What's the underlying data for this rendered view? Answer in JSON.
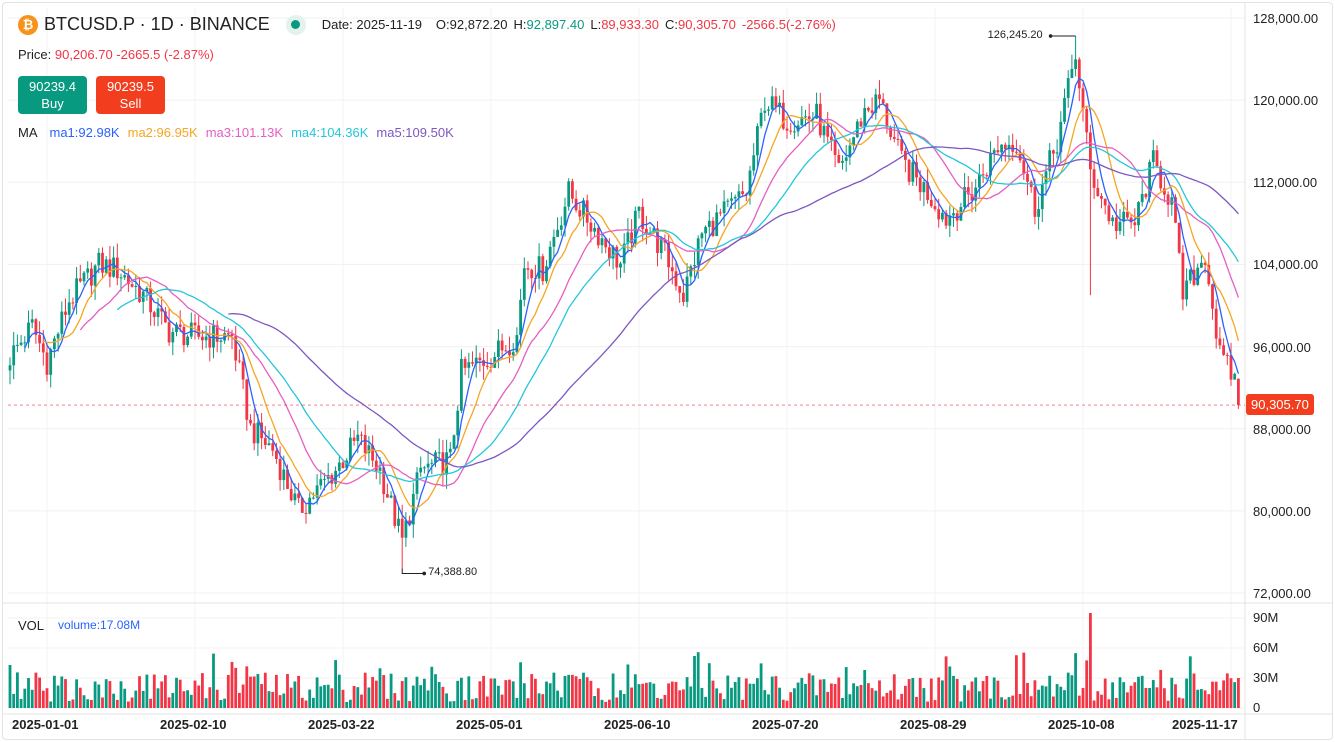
{
  "header": {
    "symbol": "BTCUSD.P · 1D · BINANCE",
    "date": "Date: 2025-11-19",
    "o_label": "O:",
    "o": "92,872.20",
    "h_label": "H:",
    "h": "92,897.40",
    "l_label": "L:",
    "l": "89,933.30",
    "c_label": "C:",
    "c": "90,305.70",
    "change": "-2566.5(-2.76%)"
  },
  "price": {
    "label": "Price:",
    "value": "90,206.70 -2665.5 (-2.87%)"
  },
  "buy": {
    "price": "90239.4",
    "label": "Buy"
  },
  "sell": {
    "price": "90239.5",
    "label": "Sell"
  },
  "ma": {
    "label": "MA",
    "items": [
      "ma1:92.98K",
      "ma2:96.95K",
      "ma3:101.13K",
      "ma4:104.36K",
      "ma5:109.50K"
    ]
  },
  "vol": {
    "label": "VOL",
    "value": "volume:17.08M"
  },
  "colors": {
    "up": "#089981",
    "down": "#f23645",
    "ma1": "#2962ff",
    "ma2": "#f5a623",
    "ma3": "#e55fc1",
    "ma4": "#26c6da",
    "ma5": "#7e57c2"
  },
  "chart_data": {
    "type": "candlestick",
    "start_date": "2024-12-22",
    "end_date": "2025-11-19",
    "price_ylim": [
      72000,
      128000
    ],
    "price_ticks": [
      "128,000.00",
      "120,000.00",
      "112,000.00",
      "104,000.00",
      "96,000.00",
      "88,000.00",
      "80,000.00",
      "72,000.00"
    ],
    "price_tick_values": [
      128000,
      120000,
      112000,
      104000,
      96000,
      88000,
      80000,
      72000
    ],
    "volume_ylim": [
      0,
      100
    ],
    "volume_ticks": [
      "90M",
      "60M",
      "30M",
      "0"
    ],
    "volume_tick_values": [
      90,
      60,
      30,
      0
    ],
    "x_ticks": [
      "2025-01-01",
      "2025-02-10",
      "2025-03-22",
      "2025-05-01",
      "2025-06-10",
      "2025-07-20",
      "2025-08-29",
      "2025-10-08",
      "2025-11-17"
    ],
    "ma_periods": [
      5,
      10,
      20,
      30,
      60
    ],
    "close_anchors": [
      [
        "2024-12-22",
        95000
      ],
      [
        "2024-12-28",
        98000
      ],
      [
        "2025-01-01",
        94500
      ],
      [
        "2025-01-07",
        100500
      ],
      [
        "2025-01-15",
        104000
      ],
      [
        "2025-01-20",
        103500
      ],
      [
        "2025-01-27",
        101000
      ],
      [
        "2025-02-03",
        97500
      ],
      [
        "2025-02-10",
        97000
      ],
      [
        "2025-02-20",
        97000
      ],
      [
        "2025-02-25",
        88000
      ],
      [
        "2025-03-03",
        86000
      ],
      [
        "2025-03-10",
        80000
      ],
      [
        "2025-03-20",
        84000
      ],
      [
        "2025-03-26",
        87000
      ],
      [
        "2025-04-01",
        84000
      ],
      [
        "2025-04-07",
        77000
      ],
      [
        "2025-04-12",
        84000
      ],
      [
        "2025-04-20",
        85000
      ],
      [
        "2025-04-23",
        93500
      ],
      [
        "2025-05-01",
        95000
      ],
      [
        "2025-05-08",
        97000
      ],
      [
        "2025-05-10",
        104000
      ],
      [
        "2025-05-15",
        103500
      ],
      [
        "2025-05-22",
        111000
      ],
      [
        "2025-05-28",
        108000
      ],
      [
        "2025-06-05",
        104000
      ],
      [
        "2025-06-10",
        109000
      ],
      [
        "2025-06-17",
        105000
      ],
      [
        "2025-06-22",
        101000
      ],
      [
        "2025-06-27",
        107000
      ],
      [
        "2025-07-03",
        109000
      ],
      [
        "2025-07-09",
        111000
      ],
      [
        "2025-07-14",
        120000
      ],
      [
        "2025-07-20",
        118000
      ],
      [
        "2025-07-28",
        118500
      ],
      [
        "2025-08-03",
        113000
      ],
      [
        "2025-08-10",
        119000
      ],
      [
        "2025-08-14",
        120000
      ],
      [
        "2025-08-20",
        114000
      ],
      [
        "2025-08-27",
        111000
      ],
      [
        "2025-09-01",
        108500
      ],
      [
        "2025-09-08",
        111000
      ],
      [
        "2025-09-15",
        115500
      ],
      [
        "2025-09-20",
        116000
      ],
      [
        "2025-09-25",
        109500
      ],
      [
        "2025-10-01",
        116000
      ],
      [
        "2025-10-06",
        124500
      ],
      [
        "2025-10-10",
        113000
      ],
      [
        "2025-10-16",
        108000
      ],
      [
        "2025-10-22",
        108000
      ],
      [
        "2025-10-27",
        114000
      ],
      [
        "2025-11-01",
        110000
      ],
      [
        "2025-11-04",
        101000
      ],
      [
        "2025-11-10",
        105000
      ],
      [
        "2025-11-14",
        95000
      ],
      [
        "2025-11-18",
        92872.2
      ]
    ],
    "last_candle": {
      "date": "2025-11-19",
      "open": 92872.2,
      "high": 92897.4,
      "low": 89933.3,
      "close": 90305.7
    },
    "annotations": {
      "low": {
        "date": "2025-04-07",
        "value": 74388.8,
        "label": "74,388.80"
      },
      "high": {
        "date": "2025-10-06",
        "value": 126245.2,
        "label": "126,245.20"
      },
      "last_price": {
        "value": 90305.7,
        "label": "90,305.70"
      }
    },
    "volume_spike": {
      "date": "2025-10-10",
      "value": 95
    }
  }
}
